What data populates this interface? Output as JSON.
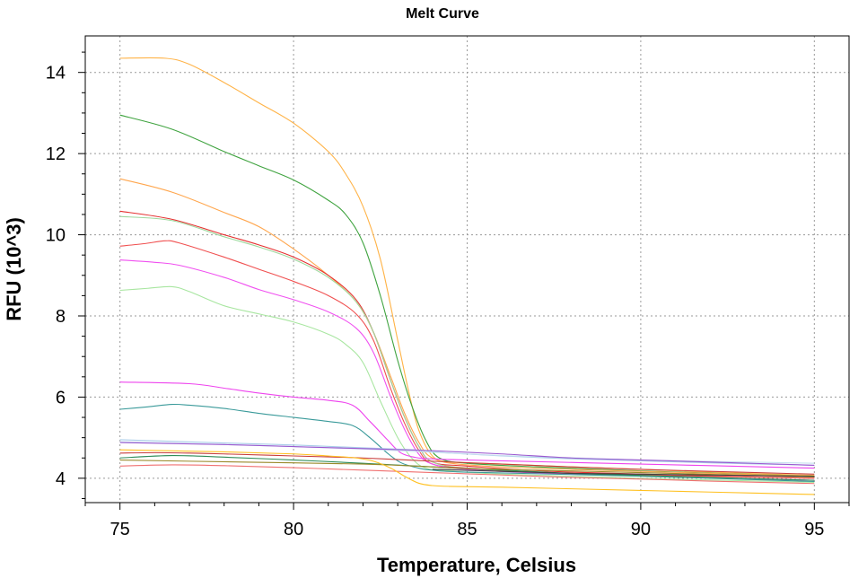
{
  "chart_data": {
    "type": "line",
    "title": "Melt Curve",
    "xlabel": "Temperature, Celsius",
    "ylabel": "RFU (10^3)",
    "xlim": [
      74,
      96
    ],
    "ylim": [
      3.4,
      14.9
    ],
    "xticks": [
      75,
      80,
      85,
      90,
      95
    ],
    "yticks": [
      4,
      6,
      8,
      10,
      12,
      14
    ],
    "x_minor_step": 1,
    "y_minor_step": 0.5,
    "grid": true,
    "series": [
      {
        "color": "#ffb347",
        "x": [
          75,
          76.3,
          77,
          78,
          79,
          80,
          81,
          81.5,
          82,
          82.5,
          83,
          83.3,
          83.6,
          84,
          84.5,
          86,
          88,
          90,
          92,
          95
        ],
        "y": [
          14.35,
          14.35,
          14.2,
          13.75,
          13.25,
          12.75,
          12.05,
          11.5,
          10.7,
          9.4,
          7.4,
          6.2,
          5.2,
          4.55,
          4.4,
          4.35,
          4.28,
          4.22,
          4.15,
          4.07
        ]
      },
      {
        "color": "#3fa33f",
        "x": [
          75,
          76.5,
          78,
          79,
          80,
          81,
          81.5,
          82,
          82.5,
          83,
          83.4,
          83.8,
          84.2,
          85,
          87,
          90,
          95
        ],
        "y": [
          12.95,
          12.6,
          12.05,
          11.7,
          11.35,
          10.85,
          10.5,
          9.8,
          8.5,
          6.9,
          5.8,
          4.95,
          4.5,
          4.37,
          4.28,
          4.18,
          4.05
        ]
      },
      {
        "color": "#ffa64d",
        "x": [
          75,
          76.5,
          78,
          79,
          80,
          81,
          81.8,
          82.3,
          82.8,
          83.2,
          83.6,
          84,
          85,
          88,
          95
        ],
        "y": [
          11.38,
          11.05,
          10.55,
          10.2,
          9.65,
          9.0,
          8.35,
          7.6,
          6.5,
          5.6,
          4.9,
          4.5,
          4.33,
          4.22,
          4.05
        ]
      },
      {
        "color": "#e53030",
        "x": [
          75,
          76.5,
          78,
          79,
          80,
          81,
          81.8,
          82.3,
          82.8,
          83.2,
          83.6,
          84,
          85,
          88,
          95
        ],
        "y": [
          10.58,
          10.38,
          10.0,
          9.75,
          9.45,
          9.0,
          8.4,
          7.6,
          6.4,
          5.5,
          4.8,
          4.4,
          4.3,
          4.15,
          4.0
        ]
      },
      {
        "color": "#9ed89e",
        "x": [
          75,
          76.5,
          78,
          79,
          80,
          81,
          81.8,
          82.3,
          82.8,
          83.2,
          83.6,
          84,
          85,
          88,
          95
        ],
        "y": [
          10.45,
          10.35,
          9.95,
          9.7,
          9.4,
          8.95,
          8.35,
          7.6,
          6.4,
          5.5,
          4.8,
          4.4,
          4.25,
          4.1,
          3.95
        ]
      },
      {
        "color": "#f05050",
        "x": [
          75,
          75.7,
          76.3,
          76.7,
          78,
          79,
          80,
          81,
          81.8,
          82.3,
          82.8,
          83.2,
          83.6,
          84,
          85,
          88,
          95
        ],
        "y": [
          9.72,
          9.78,
          9.85,
          9.8,
          9.45,
          9.15,
          8.85,
          8.5,
          8.05,
          7.4,
          6.2,
          5.35,
          4.7,
          4.35,
          4.25,
          4.12,
          4.0
        ]
      },
      {
        "color": "#f050f0",
        "x": [
          75,
          76,
          76.7,
          78,
          79,
          80,
          81,
          81.8,
          82.3,
          82.8,
          83.2,
          83.6,
          84,
          85,
          88,
          95
        ],
        "y": [
          9.38,
          9.32,
          9.25,
          8.95,
          8.65,
          8.4,
          8.1,
          7.7,
          7.1,
          6.0,
          5.2,
          4.6,
          4.35,
          4.22,
          4.1,
          3.95
        ]
      },
      {
        "color": "#a8e6a0",
        "x": [
          75,
          75.8,
          76.5,
          77,
          78,
          79,
          80,
          81,
          81.5,
          82,
          82.5,
          83,
          83.4,
          83.8,
          84.5,
          86,
          90,
          95
        ],
        "y": [
          8.63,
          8.68,
          8.72,
          8.6,
          8.25,
          8.05,
          7.85,
          7.55,
          7.3,
          6.85,
          5.9,
          5.0,
          4.5,
          4.25,
          4.18,
          4.1,
          4.0,
          3.9
        ]
      },
      {
        "color": "#ee44ee",
        "x": [
          75,
          77,
          78,
          79,
          80,
          81,
          81.7,
          82.2,
          82.7,
          83.1,
          83.6,
          84,
          85,
          90,
          95
        ],
        "y": [
          6.37,
          6.33,
          6.22,
          6.1,
          6.0,
          5.92,
          5.8,
          5.4,
          4.95,
          4.62,
          4.5,
          4.48,
          4.45,
          4.35,
          4.25
        ]
      },
      {
        "color": "#3a9a9a",
        "x": [
          75,
          75.8,
          76.5,
          77,
          78,
          79,
          80,
          81,
          81.7,
          82.2,
          82.7,
          83.1,
          83.6,
          84,
          85,
          90,
          95
        ],
        "y": [
          5.7,
          5.76,
          5.82,
          5.8,
          5.72,
          5.6,
          5.5,
          5.4,
          5.3,
          5.0,
          4.62,
          4.38,
          4.25,
          4.2,
          4.15,
          4.05,
          3.92
        ]
      },
      {
        "color": "#a8cce8",
        "x": [
          75,
          78,
          80,
          82,
          83.5,
          84,
          84.5,
          86,
          88,
          90,
          92,
          95
        ],
        "y": [
          4.95,
          4.87,
          4.82,
          4.75,
          4.7,
          4.66,
          4.62,
          4.55,
          4.48,
          4.43,
          4.38,
          4.32
        ]
      },
      {
        "color": "#c8e0f0",
        "x": [
          75,
          78,
          80,
          82,
          84,
          86,
          90,
          95
        ],
        "y": [
          4.9,
          4.83,
          4.78,
          4.72,
          4.64,
          4.56,
          4.45,
          4.37
        ]
      },
      {
        "color": "#9b59d0",
        "x": [
          75,
          78,
          80,
          82,
          84,
          86,
          88,
          90,
          92,
          95
        ],
        "y": [
          4.88,
          4.83,
          4.78,
          4.73,
          4.68,
          4.6,
          4.5,
          4.45,
          4.4,
          4.32
        ]
      },
      {
        "color": "#c83c3c",
        "x": [
          75,
          76,
          77,
          78,
          80,
          82,
          84,
          86,
          88,
          90,
          92,
          95
        ],
        "y": [
          4.62,
          4.63,
          4.62,
          4.6,
          4.55,
          4.5,
          4.42,
          4.35,
          4.28,
          4.22,
          4.17,
          4.1
        ]
      },
      {
        "color": "#2e8b57",
        "x": [
          75,
          76.5,
          78,
          80,
          82,
          84,
          86,
          88,
          90,
          92,
          95
        ],
        "y": [
          4.5,
          4.56,
          4.52,
          4.45,
          4.37,
          4.28,
          4.2,
          4.12,
          4.07,
          4.02,
          3.95
        ]
      },
      {
        "color": "#f07070",
        "x": [
          75,
          76.5,
          78,
          80,
          82,
          84,
          86,
          88,
          90,
          92,
          95
        ],
        "y": [
          4.3,
          4.33,
          4.31,
          4.26,
          4.2,
          4.14,
          4.08,
          4.02,
          3.98,
          3.93,
          3.87
        ]
      },
      {
        "color": "#9a8a2a",
        "x": [
          75,
          77,
          80,
          82,
          83,
          83.5,
          84,
          85,
          88,
          90,
          95
        ],
        "y": [
          4.45,
          4.42,
          4.38,
          4.35,
          4.32,
          4.3,
          4.28,
          4.24,
          4.18,
          4.14,
          4.03
        ]
      },
      {
        "color": "#ffc020",
        "x": [
          75,
          78,
          80,
          81,
          81.8,
          82.3,
          82.8,
          83.2,
          83.6,
          84,
          84.5,
          86,
          88,
          90,
          92,
          95
        ],
        "y": [
          4.7,
          4.65,
          4.6,
          4.55,
          4.5,
          4.42,
          4.25,
          4.05,
          3.88,
          3.82,
          3.8,
          3.78,
          3.74,
          3.7,
          3.66,
          3.6
        ]
      },
      {
        "color": "#404040",
        "x": [
          84,
          86,
          88,
          90,
          92,
          95
        ],
        "y": [
          4.22,
          4.17,
          4.12,
          4.1,
          4.08,
          4.05
        ]
      }
    ]
  }
}
